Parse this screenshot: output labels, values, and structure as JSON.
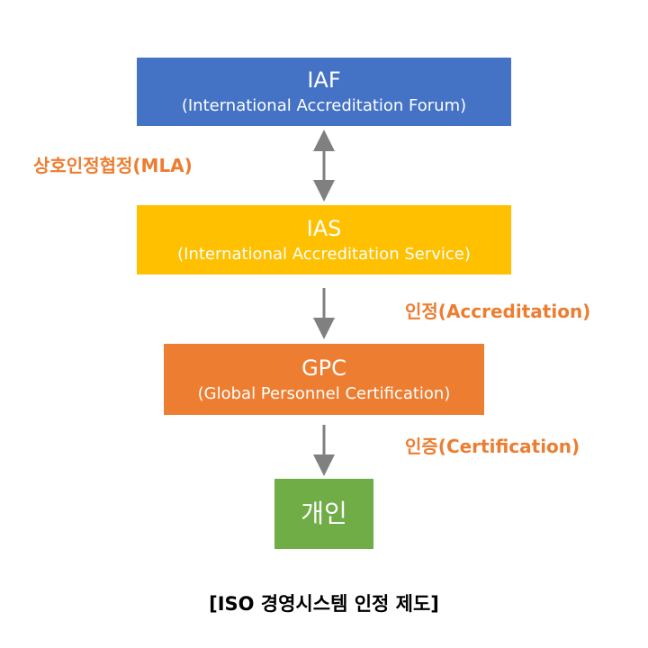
{
  "colors": {
    "iaf": "#4472c4",
    "ias": "#ffc000",
    "gpc": "#ed7d31",
    "person": "#70ad47",
    "label": "#ed7d31",
    "arrow": "#808080"
  },
  "nodes": {
    "iaf": {
      "title": "IAF",
      "subtitle": "(International Accreditation Forum)"
    },
    "ias": {
      "title": "IAS",
      "subtitle": "(International Accreditation Service)"
    },
    "gpc": {
      "title": "GPC",
      "subtitle": "(Global Personnel Certification)"
    },
    "person": {
      "title": "개인"
    }
  },
  "edges": {
    "mla": {
      "label": "상호인정협정(MLA)",
      "from": "iaf",
      "to": "ias",
      "direction": "both"
    },
    "accreditation": {
      "label": "인정(Accreditation)",
      "from": "ias",
      "to": "gpc",
      "direction": "forward"
    },
    "certification": {
      "label": "인증(Certification)",
      "from": "gpc",
      "to": "person",
      "direction": "forward"
    }
  },
  "caption": "[ISO 경영시스템 인정 제도]"
}
